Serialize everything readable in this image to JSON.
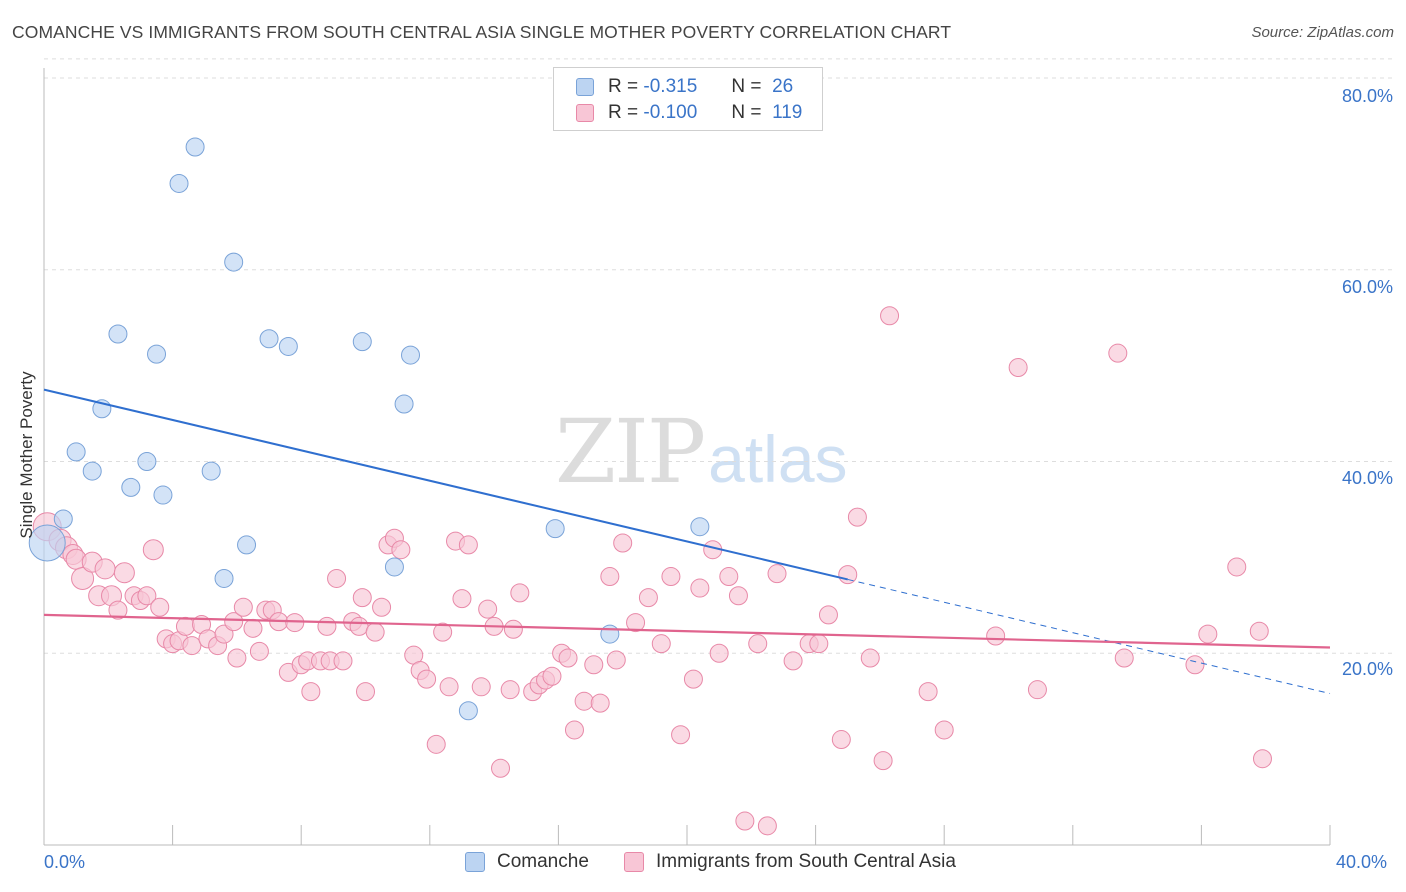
{
  "title": "COMANCHE VS IMMIGRANTS FROM SOUTH CENTRAL ASIA SINGLE MOTHER POVERTY CORRELATION CHART",
  "source": "Source: ZipAtlas.com",
  "watermark": {
    "zip": "ZIP",
    "atlas": "atlas"
  },
  "legend": {
    "rows": [
      {
        "r_label": "R =",
        "r_value": "-0.315",
        "n_label": "N =",
        "n_value": "26"
      },
      {
        "r_label": "R =",
        "r_value": "-0.100",
        "n_label": "N =",
        "n_value": "119"
      }
    ]
  },
  "colors": {
    "comanche_fill": "#bcd4f2",
    "comanche_stroke": "#7aa3d8",
    "comanche_line": "#2f6fcf",
    "immigrants_fill": "#f8c6d6",
    "immigrants_stroke": "#e889a8",
    "immigrants_line": "#e0648e",
    "axis_text": "#3a74c8",
    "grid": "#dddddd"
  },
  "chart_data": {
    "type": "scatter",
    "title": "COMANCHE VS IMMIGRANTS FROM SOUTH CENTRAL ASIA SINGLE MOTHER POVERTY CORRELATION CHART",
    "xlabel": "",
    "ylabel": "Single Mother Poverty",
    "xlim": [
      0,
      40
    ],
    "ylim": [
      0,
      82
    ],
    "x_tick_labels": [
      "0.0%",
      "40.0%"
    ],
    "y_ticks": [
      20,
      40,
      60,
      80
    ],
    "y_tick_labels": [
      "20.0%",
      "40.0%",
      "60.0%",
      "80.0%"
    ],
    "grid": true,
    "legend_position": "top-center",
    "series": [
      {
        "name": "Comanche",
        "r": -0.315,
        "n": 26,
        "trend": {
          "x0": 0,
          "y0": 47.5,
          "x1": 25.0,
          "y1": 27.7,
          "dashed_to_x": 40,
          "dashed_to_y": 15.8
        },
        "points": [
          [
            0.1,
            31.5,
            18
          ],
          [
            0.6,
            34.0,
            9
          ],
          [
            1.0,
            41.0,
            9
          ],
          [
            1.5,
            39.0,
            9
          ],
          [
            1.8,
            45.5,
            9
          ],
          [
            2.7,
            37.3,
            9
          ],
          [
            3.2,
            40.0,
            9
          ],
          [
            2.3,
            53.3,
            9
          ],
          [
            3.5,
            51.2,
            9
          ],
          [
            3.7,
            36.5,
            9
          ],
          [
            4.2,
            69.0,
            9
          ],
          [
            4.7,
            72.8,
            9
          ],
          [
            5.2,
            39.0,
            9
          ],
          [
            5.6,
            27.8,
            9
          ],
          [
            5.9,
            60.8,
            9
          ],
          [
            6.3,
            31.3,
            9
          ],
          [
            7.0,
            52.8,
            9
          ],
          [
            7.6,
            52.0,
            9
          ],
          [
            9.9,
            52.5,
            9
          ],
          [
            10.9,
            29.0,
            9
          ],
          [
            11.2,
            46.0,
            9
          ],
          [
            11.4,
            51.1,
            9
          ],
          [
            13.2,
            14.0,
            9
          ],
          [
            15.9,
            33.0,
            9
          ],
          [
            17.6,
            22.0,
            9
          ],
          [
            20.4,
            33.2,
            9
          ]
        ]
      },
      {
        "name": "Immigrants from South Central Asia",
        "r": -0.1,
        "n": 119,
        "trend": {
          "x0": 0,
          "y0": 24.0,
          "x1": 40,
          "y1": 20.6
        },
        "points": [
          [
            0.1,
            33.2,
            14
          ],
          [
            0.5,
            31.8,
            11
          ],
          [
            0.7,
            31.0,
            11
          ],
          [
            0.9,
            30.3,
            10
          ],
          [
            1.0,
            29.8,
            10
          ],
          [
            1.2,
            27.8,
            11
          ],
          [
            1.5,
            29.5,
            10
          ],
          [
            1.7,
            26.0,
            10
          ],
          [
            1.9,
            28.8,
            10
          ],
          [
            2.1,
            26.0,
            10
          ],
          [
            2.3,
            24.5,
            9
          ],
          [
            2.5,
            28.4,
            10
          ],
          [
            2.8,
            26.0,
            9
          ],
          [
            3.0,
            25.5,
            9
          ],
          [
            3.2,
            26.0,
            9
          ],
          [
            3.4,
            30.8,
            10
          ],
          [
            3.6,
            24.8,
            9
          ],
          [
            3.8,
            21.5,
            9
          ],
          [
            4.0,
            21.0,
            9
          ],
          [
            4.2,
            21.3,
            9
          ],
          [
            4.4,
            22.8,
            9
          ],
          [
            4.6,
            20.8,
            9
          ],
          [
            4.9,
            23.0,
            9
          ],
          [
            5.1,
            21.5,
            9
          ],
          [
            5.4,
            20.8,
            9
          ],
          [
            5.6,
            22.0,
            9
          ],
          [
            5.9,
            23.3,
            9
          ],
          [
            6.0,
            19.5,
            9
          ],
          [
            6.2,
            24.8,
            9
          ],
          [
            6.5,
            22.6,
            9
          ],
          [
            6.7,
            20.2,
            9
          ],
          [
            6.9,
            24.5,
            9
          ],
          [
            7.1,
            24.5,
            9
          ],
          [
            7.3,
            23.3,
            9
          ],
          [
            7.6,
            18.0,
            9
          ],
          [
            7.8,
            23.2,
            9
          ],
          [
            8.0,
            18.8,
            9
          ],
          [
            8.2,
            19.2,
            9
          ],
          [
            8.3,
            16.0,
            9
          ],
          [
            8.6,
            19.2,
            9
          ],
          [
            8.8,
            22.8,
            9
          ],
          [
            8.9,
            19.2,
            9
          ],
          [
            9.1,
            27.8,
            9
          ],
          [
            9.3,
            19.2,
            9
          ],
          [
            9.6,
            23.3,
            9
          ],
          [
            9.8,
            22.8,
            9
          ],
          [
            9.9,
            25.8,
            9
          ],
          [
            10.0,
            16.0,
            9
          ],
          [
            10.3,
            22.2,
            9
          ],
          [
            10.5,
            24.8,
            9
          ],
          [
            10.7,
            31.3,
            9
          ],
          [
            10.9,
            32.0,
            9
          ],
          [
            11.1,
            30.8,
            9
          ],
          [
            11.5,
            19.8,
            9
          ],
          [
            11.7,
            18.2,
            9
          ],
          [
            11.9,
            17.3,
            9
          ],
          [
            12.2,
            10.5,
            9
          ],
          [
            12.4,
            22.2,
            9
          ],
          [
            12.6,
            16.5,
            9
          ],
          [
            12.8,
            31.7,
            9
          ],
          [
            13.0,
            25.7,
            9
          ],
          [
            13.2,
            31.3,
            9
          ],
          [
            13.6,
            16.5,
            9
          ],
          [
            13.8,
            24.6,
            9
          ],
          [
            14.0,
            22.8,
            9
          ],
          [
            14.2,
            8.0,
            9
          ],
          [
            14.5,
            16.2,
            9
          ],
          [
            14.8,
            26.3,
            9
          ],
          [
            14.6,
            22.5,
            9
          ],
          [
            15.2,
            16.0,
            9
          ],
          [
            15.4,
            16.7,
            9
          ],
          [
            15.6,
            17.2,
            9
          ],
          [
            15.8,
            17.6,
            9
          ],
          [
            16.1,
            20.0,
            9
          ],
          [
            16.3,
            19.5,
            9
          ],
          [
            16.5,
            12.0,
            9
          ],
          [
            16.8,
            15.0,
            9
          ],
          [
            17.1,
            18.8,
            9
          ],
          [
            17.3,
            14.8,
            9
          ],
          [
            17.6,
            28.0,
            9
          ],
          [
            17.8,
            19.3,
            9
          ],
          [
            18.0,
            31.5,
            9
          ],
          [
            18.4,
            23.2,
            9
          ],
          [
            18.8,
            25.8,
            9
          ],
          [
            19.2,
            21.0,
            9
          ],
          [
            19.5,
            28.0,
            9
          ],
          [
            19.8,
            11.5,
            9
          ],
          [
            20.2,
            17.3,
            9
          ],
          [
            20.4,
            26.8,
            9
          ],
          [
            20.8,
            30.8,
            9
          ],
          [
            21.0,
            20.0,
            9
          ],
          [
            21.3,
            28.0,
            9
          ],
          [
            21.6,
            26.0,
            9
          ],
          [
            21.8,
            2.5,
            9
          ],
          [
            22.2,
            21.0,
            9
          ],
          [
            22.5,
            2.0,
            9
          ],
          [
            22.8,
            28.3,
            9
          ],
          [
            23.3,
            19.2,
            9
          ],
          [
            23.8,
            21.0,
            9
          ],
          [
            24.1,
            21.0,
            9
          ],
          [
            24.4,
            24.0,
            9
          ],
          [
            24.8,
            11.0,
            9
          ],
          [
            25.0,
            28.2,
            9
          ],
          [
            25.3,
            34.2,
            9
          ],
          [
            25.7,
            19.5,
            9
          ],
          [
            26.1,
            8.8,
            9
          ],
          [
            26.3,
            55.2,
            9
          ],
          [
            27.5,
            16.0,
            9
          ],
          [
            28.0,
            12.0,
            9
          ],
          [
            29.6,
            21.8,
            9
          ],
          [
            30.3,
            49.8,
            9
          ],
          [
            30.9,
            16.2,
            9
          ],
          [
            33.4,
            51.3,
            9
          ],
          [
            33.6,
            19.5,
            9
          ],
          [
            35.8,
            18.8,
            9
          ],
          [
            36.2,
            22.0,
            9
          ],
          [
            37.1,
            29.0,
            9
          ],
          [
            37.8,
            22.3,
            9
          ],
          [
            37.9,
            9.0,
            9
          ]
        ]
      }
    ]
  },
  "bottom_legend": [
    {
      "label": "Comanche"
    },
    {
      "label": "Immigrants from South Central Asia"
    }
  ]
}
